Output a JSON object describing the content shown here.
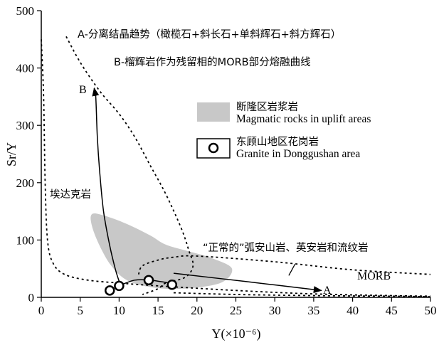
{
  "chart_data": {
    "type": "scatter",
    "title": "",
    "xlabel": "Y(×10⁻⁶)",
    "ylabel": "Sr/Y",
    "xlim": [
      0,
      50
    ],
    "ylim": [
      0,
      500
    ],
    "x_ticks": [
      0,
      5,
      10,
      15,
      20,
      25,
      30,
      35,
      40,
      45,
      50
    ],
    "y_ticks": [
      0,
      100,
      200,
      300,
      400,
      500
    ],
    "grid": false,
    "legend_position": "upper-right",
    "annotations": {
      "line_a": "A-分离结晶趋势（橄榄石+斜长石+单斜辉石+斜方辉石）",
      "line_b": "B-榴辉岩作为残留相的MORB部分熔融曲线",
      "adakite": "埃达克岩",
      "normal_arc": "“正常的”弧安山岩、英安岩和流纹岩",
      "morb": "MORB",
      "label_a": "A",
      "label_b": "B"
    },
    "legend": [
      {
        "label_cn": "断隆区岩浆岩",
        "label_en": "Magmatic rocks in uplift areas",
        "symbol": "gray-field",
        "color": "#c8c8c8"
      },
      {
        "label_cn": "东顾山地区花岗岩",
        "label_en": "Granite in Donggushan area",
        "symbol": "open-circle",
        "color": "#000000"
      }
    ],
    "series": [
      {
        "name": "东顾山地区花岗岩",
        "points": [
          {
            "x": 8.8,
            "y": 12
          },
          {
            "x": 10.0,
            "y": 20
          },
          {
            "x": 13.8,
            "y": 30
          },
          {
            "x": 16.8,
            "y": 22
          }
        ]
      }
    ],
    "regions": {
      "uplift_field": [
        [
          6.5,
          145
        ],
        [
          8,
          143
        ],
        [
          11,
          128
        ],
        [
          14,
          108
        ],
        [
          16,
          92
        ],
        [
          19,
          80
        ],
        [
          22,
          68
        ],
        [
          24.5,
          50
        ],
        [
          23,
          25
        ],
        [
          18,
          15
        ],
        [
          14,
          18
        ],
        [
          11,
          30
        ],
        [
          9,
          55
        ],
        [
          7.5,
          90
        ],
        [
          6.5,
          125
        ]
      ],
      "adakite_field": [
        [
          0,
          450
        ],
        [
          0.3,
          350
        ],
        [
          0.5,
          200
        ],
        [
          0.8,
          100
        ],
        [
          1.5,
          60
        ],
        [
          3,
          40
        ],
        [
          6,
          30
        ],
        [
          10,
          25
        ],
        [
          15,
          20
        ],
        [
          25,
          12
        ],
        [
          35,
          6
        ],
        [
          45,
          3
        ],
        [
          50,
          2
        ]
      ],
      "adakite_upper_boundary": [
        [
          3.2,
          455
        ],
        [
          5,
          410
        ],
        [
          7.5,
          360
        ],
        [
          10,
          320
        ],
        [
          12,
          280
        ],
        [
          14,
          230
        ],
        [
          16,
          180
        ],
        [
          18,
          120
        ],
        [
          19,
          80
        ],
        [
          19.5,
          55
        ],
        [
          18.5,
          35
        ],
        [
          16,
          25
        ],
        [
          15,
          15
        ],
        [
          13,
          5
        ]
      ],
      "arc_field": [
        [
          12.5,
          40
        ],
        [
          13,
          55
        ],
        [
          15,
          65
        ],
        [
          17,
          70
        ],
        [
          20,
          72
        ],
        [
          30,
          62
        ],
        [
          40,
          48
        ],
        [
          50,
          40
        ]
      ],
      "arc_lower": [
        [
          17,
          8
        ],
        [
          25,
          5
        ],
        [
          35,
          3
        ],
        [
          45,
          2
        ],
        [
          50,
          1
        ]
      ],
      "curve_b": [
        [
          10.2,
          22
        ],
        [
          10,
          28
        ],
        [
          9.5,
          50
        ],
        [
          8.8,
          90
        ],
        [
          8,
          150
        ],
        [
          7.5,
          220
        ],
        [
          7.2,
          280
        ],
        [
          7,
          350
        ],
        [
          6.8,
          365
        ]
      ],
      "curve_b_to_start": [
        [
          16.5,
          25
        ],
        [
          14,
          30
        ],
        [
          12,
          30
        ],
        [
          10.2,
          22
        ]
      ],
      "line_a": [
        [
          17,
          42
        ],
        [
          26,
          28
        ],
        [
          36,
          12
        ]
      ]
    }
  }
}
